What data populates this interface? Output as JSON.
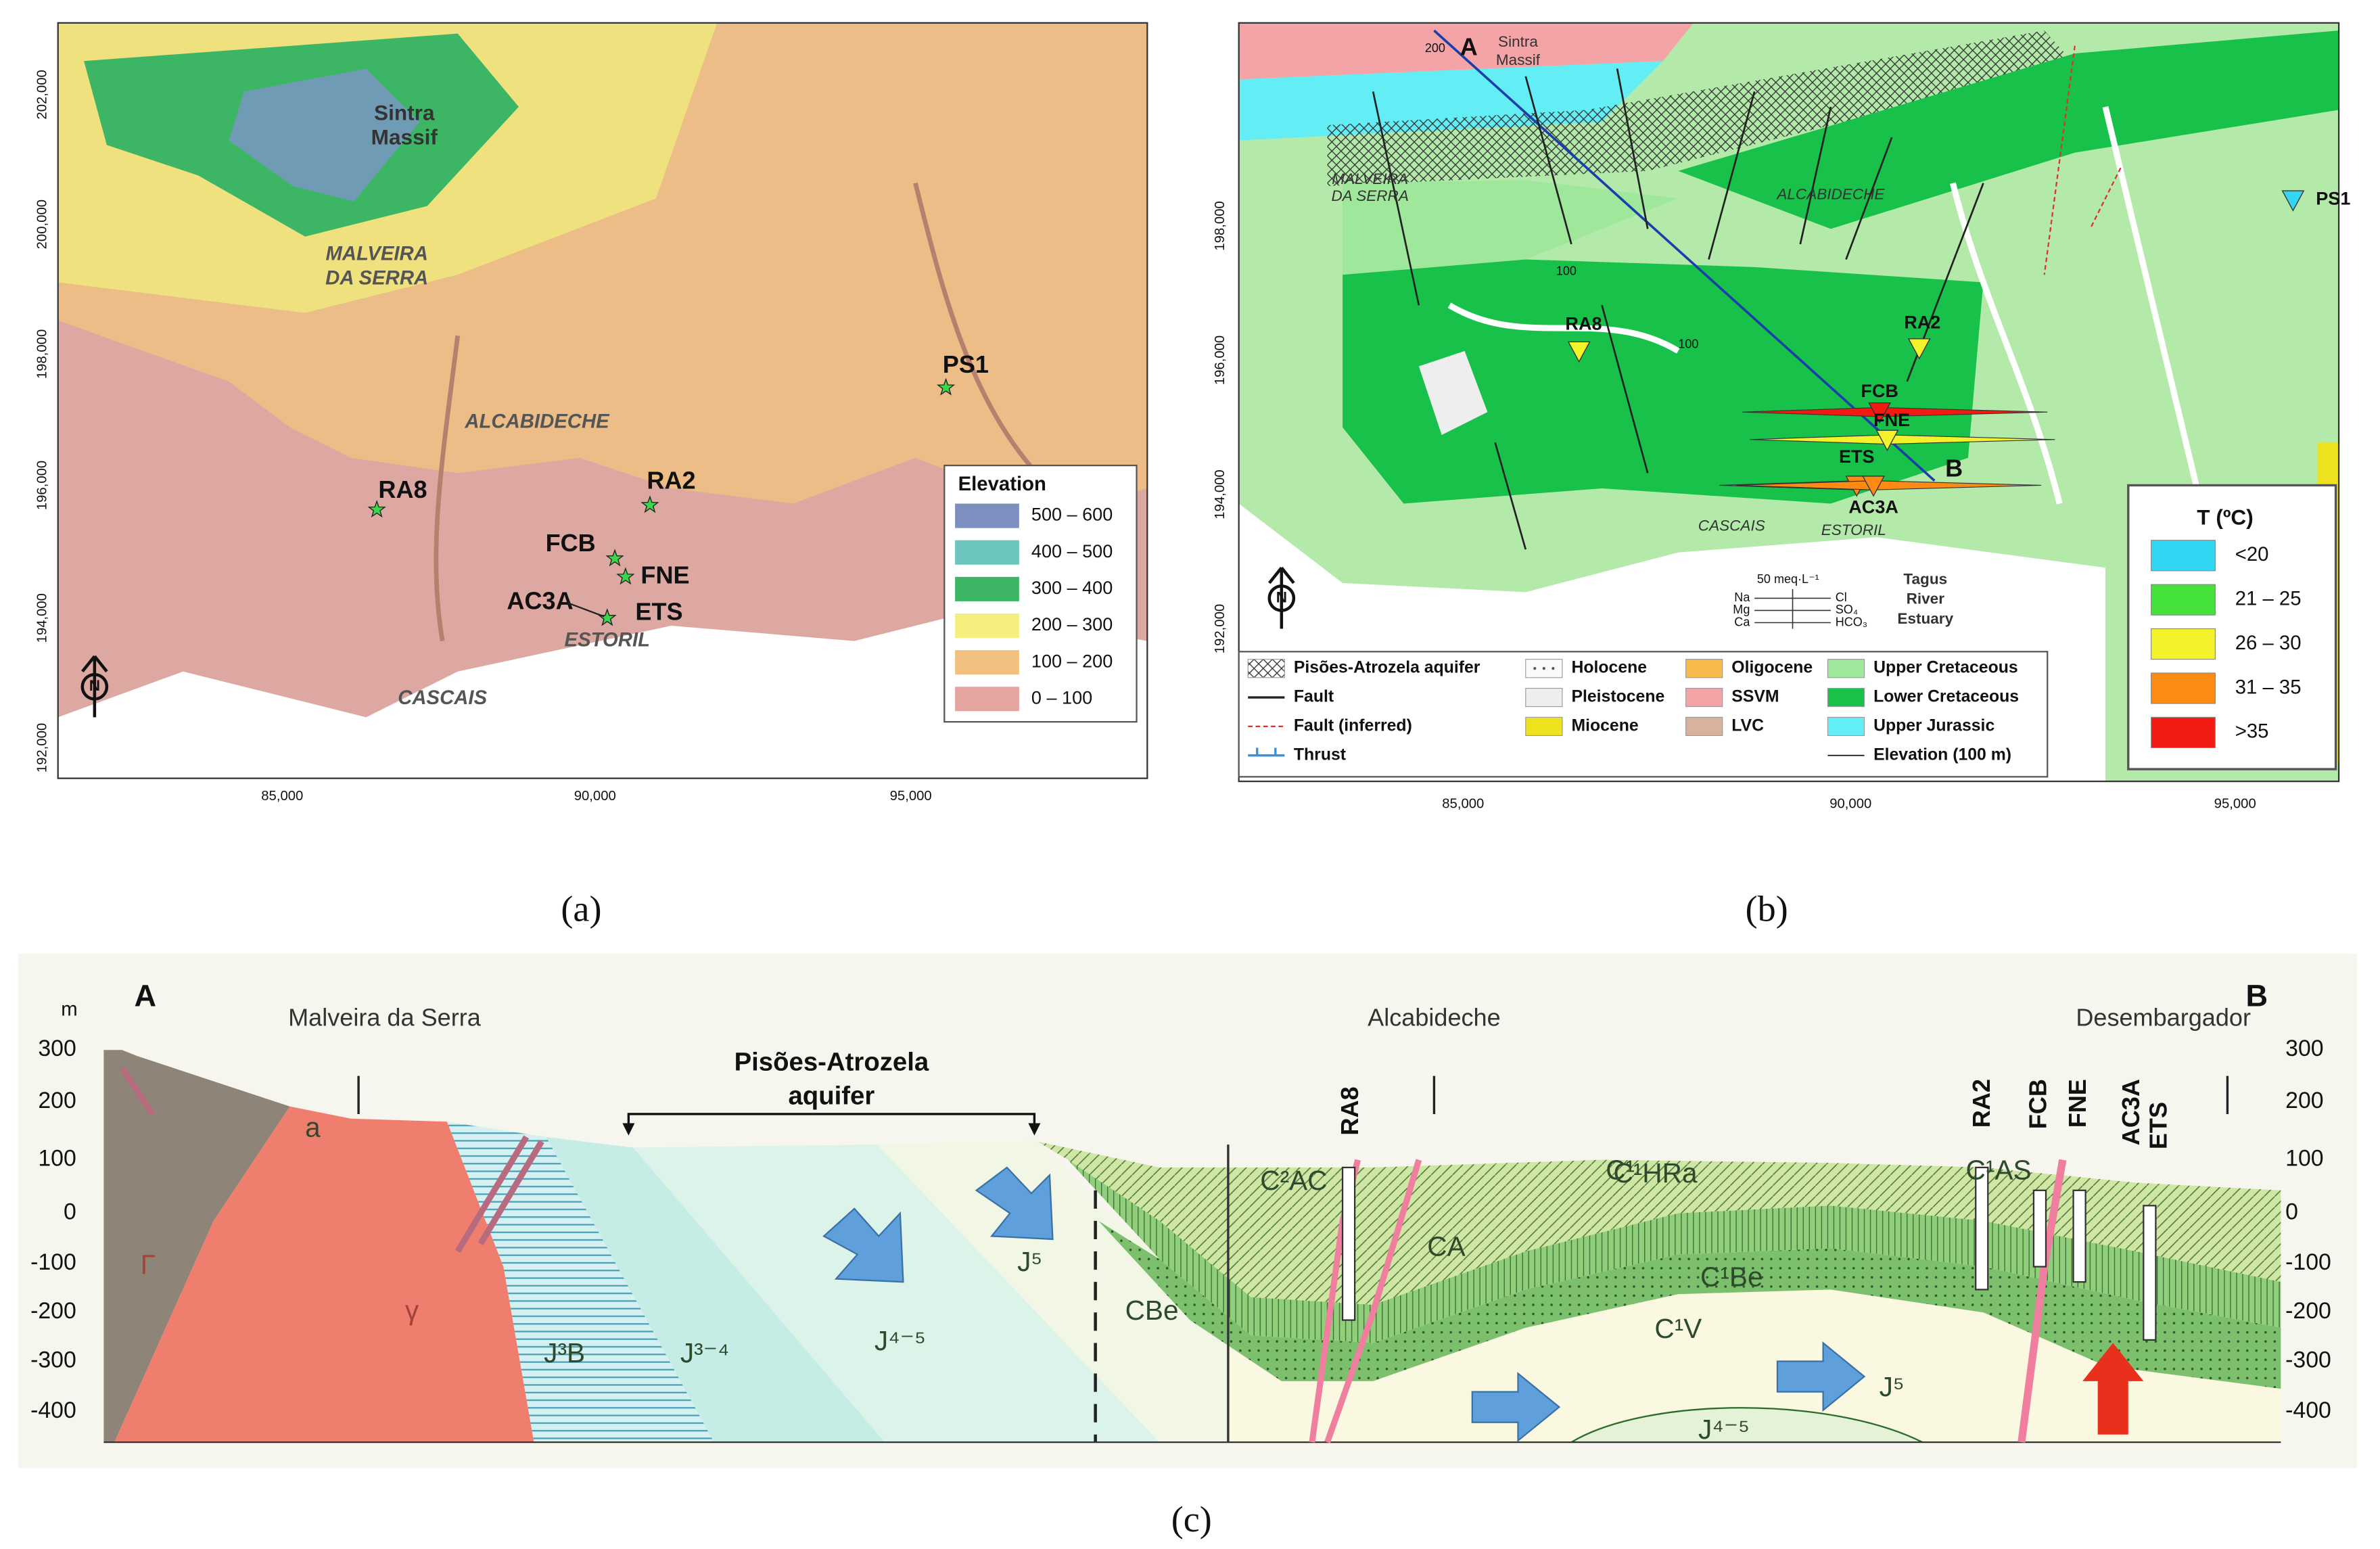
{
  "panel_a": {
    "caption": "(a)",
    "x_ticks": [
      "85,000",
      "90,000",
      "95,000"
    ],
    "y_ticks": [
      "192,000",
      "194,000",
      "196,000",
      "198,000",
      "200,000",
      "202,000"
    ],
    "places": [
      "Sintra",
      "Massif",
      "MALVEIRA",
      "DA SERRA",
      "ALCABIDECHE",
      "CASCAIS",
      "ESTORIL"
    ],
    "wells": [
      "RA8",
      "RA2",
      "FCB",
      "FNE",
      "AC3A",
      "ETS",
      "PS1"
    ],
    "north": "N",
    "legend": {
      "title": "Elevation",
      "items": [
        {
          "label": "500 – 600",
          "color": "#7d8fbf"
        },
        {
          "label": "400 – 500",
          "color": "#6cc6bd"
        },
        {
          "label": "300 – 400",
          "color": "#3cb565"
        },
        {
          "label": "200 – 300",
          "color": "#f5f07e"
        },
        {
          "label": "100 – 200",
          "color": "#f2c07e"
        },
        {
          "label": "0 – 100",
          "color": "#e4a4a0"
        }
      ]
    }
  },
  "panel_b": {
    "caption": "(b)",
    "x_ticks": [
      "85,000",
      "90,000",
      "95,000"
    ],
    "y_ticks": [
      "192,000",
      "194,000",
      "196,000",
      "198,000"
    ],
    "places": [
      "Sintra",
      "Massif",
      "MALVEIRA",
      "DA SERRA",
      "ALCABIDECHE",
      "CASCAIS",
      "ESTORIL",
      "Tagus",
      "River",
      "Estuary"
    ],
    "section_ends": [
      "A",
      "B"
    ],
    "contours": [
      "200",
      "100",
      "100"
    ],
    "wells": [
      "RA8",
      "RA2",
      "FCB",
      "FNE",
      "ETS",
      "AC3A",
      "PS1"
    ],
    "north": "N",
    "stiff_scale": {
      "label": "50 meq·L⁻¹",
      "left_ions": [
        "Na",
        "Mg",
        "Ca"
      ],
      "right_ions": [
        "Cl",
        "SO₄",
        "HCO₃"
      ]
    },
    "legend": {
      "items": [
        {
          "label": "Pisões-Atrozela aquifer",
          "color": "#ffffff",
          "style": "crosshatch"
        },
        {
          "label": "Fault",
          "color": "#222222",
          "style": "line"
        },
        {
          "label": "Fault (inferred)",
          "color": "#e03030",
          "style": "dashed"
        },
        {
          "label": "Thrust",
          "color": "#3a8fd8",
          "style": "thrust"
        },
        {
          "label": "Holocene",
          "color": "#fafafa",
          "style": "dotted"
        },
        {
          "label": "Pleistocene",
          "color": "#eeeeee",
          "style": "fill"
        },
        {
          "label": "Miocene",
          "color": "#ede21d",
          "style": "fill"
        },
        {
          "label": "Oligocene",
          "color": "#f6b94a",
          "style": "fill"
        },
        {
          "label": "SSVM",
          "color": "#f4a4a6",
          "style": "fill"
        },
        {
          "label": "LVC",
          "color": "#d9b29c",
          "style": "fill"
        },
        {
          "label": "Upper Cretaceous",
          "color": "#9fe79b",
          "style": "fill"
        },
        {
          "label": "Lower Cretaceous",
          "color": "#18c14a",
          "style": "fill"
        },
        {
          "label": "Upper Jurassic",
          "color": "#63eef6",
          "style": "fill"
        },
        {
          "label": "Elevation (100 m)",
          "color": "#222222",
          "style": "thin"
        }
      ]
    },
    "temperature_legend": {
      "title": "T (ºC)",
      "items": [
        {
          "label": "<20",
          "color": "#33d6f2"
        },
        {
          "label": "21 – 25",
          "color": "#44e13a"
        },
        {
          "label": "26 – 30",
          "color": "#f4f22b"
        },
        {
          "label": "31 – 35",
          "color": "#fb8b14"
        },
        {
          "label": ">35",
          "color": "#f31a12"
        }
      ]
    }
  },
  "panel_c": {
    "caption": "(c)",
    "unit": "m",
    "section_ends": [
      "A",
      "B"
    ],
    "places": [
      "Malveira da Serra",
      "Alcabideche",
      "Desembargador"
    ],
    "aquifer": [
      "Pisões-Atrozela",
      "aquifer"
    ],
    "y_ticks": [
      "300",
      "200",
      "100",
      "0",
      "-100",
      "-200",
      "-300",
      "-400"
    ],
    "wells": [
      "RA8",
      "RA2",
      "FCB",
      "FNE",
      "AC3A",
      "ETS"
    ],
    "units": [
      "Γ",
      "γ",
      "J³B",
      "J³⁻⁴",
      "J⁴⁻⁵",
      "J⁵",
      "CBe",
      "C²AC",
      "C¹HRa",
      "CA",
      "C¹AS",
      "C¹Be",
      "C¹V",
      "C¹",
      "J⁵",
      "J⁴⁻⁵",
      "a"
    ]
  }
}
